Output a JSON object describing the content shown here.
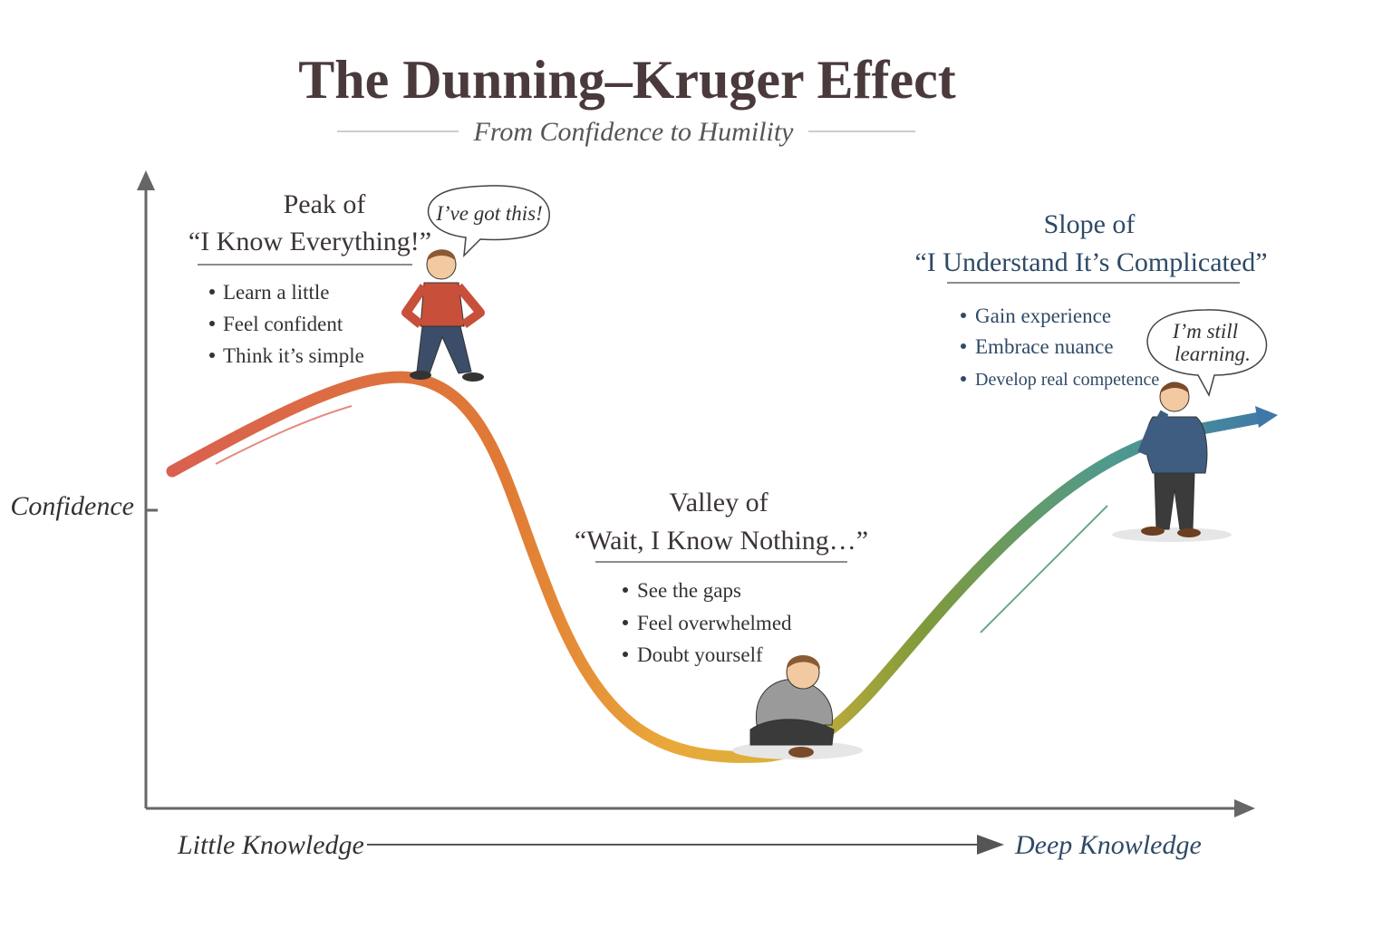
{
  "header": {
    "title": "The Dunning–Kruger Effect",
    "subtitle": "From Confidence to Humility"
  },
  "axes": {
    "y_label": "Confidence",
    "x_start_label": "Little Knowledge",
    "x_end_label": "Deep Knowledge"
  },
  "stages": [
    {
      "heading": [
        "Peak of",
        "“I Know Everything!”"
      ],
      "bullets": [
        "Learn a little",
        "Feel confident",
        "Think it’s simple"
      ],
      "bubble": [
        "I’ve got this!"
      ]
    },
    {
      "heading": [
        "Valley of",
        "“Wait, I Know Nothing…”"
      ],
      "bullets": [
        "See the gaps",
        "Feel overwhelmed",
        "Doubt yourself"
      ]
    },
    {
      "heading": [
        "Slope of",
        "“I Understand It’s Complicated”"
      ],
      "bullets": [
        "Gain experience",
        "Embrace nuance",
        "Develop real competence"
      ],
      "bubble": [
        "I’m still",
        "learning."
      ]
    }
  ]
}
